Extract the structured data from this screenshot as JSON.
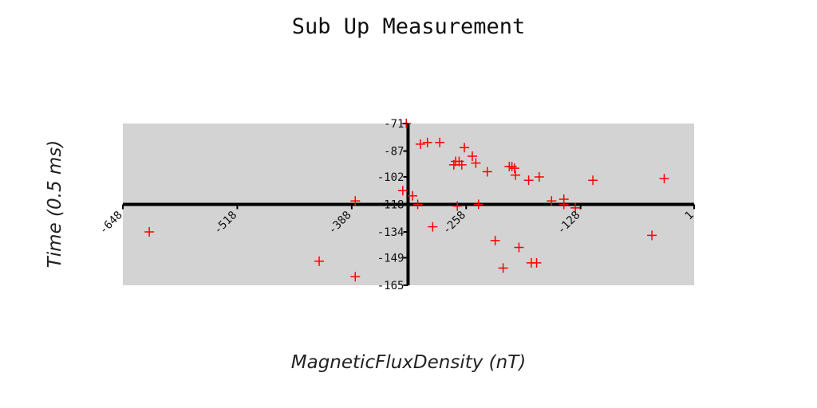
{
  "chart_data": {
    "type": "scatter",
    "title": "Sub Up Measurement",
    "xlabel": "MagneticFluxDensity (nT)",
    "ylabel": "Time (0.5 ms)",
    "xlim": [
      -648,
      1
    ],
    "ylim": [
      -165,
      -71
    ],
    "x_ticks": [
      -648,
      -518,
      -388,
      -258,
      -128,
      1
    ],
    "y_ticks": [
      -71,
      -87,
      -102,
      -118,
      -134,
      -149,
      -165
    ],
    "x_axis_at_y": -118,
    "y_axis_at_x": -324,
    "grid": false,
    "legend": "none",
    "colors": {
      "plot_background": "#d3d3d3",
      "marker": "#ff0000",
      "axis": "#000000"
    },
    "marker": "plus",
    "points": [
      [
        -618,
        -134
      ],
      [
        -425,
        -151
      ],
      [
        -384,
        -116
      ],
      [
        -384,
        -160
      ],
      [
        -330,
        -110
      ],
      [
        -326,
        -71
      ],
      [
        -319,
        -113
      ],
      [
        -313,
        -118
      ],
      [
        -310,
        -83
      ],
      [
        -302,
        -82
      ],
      [
        -296,
        -131
      ],
      [
        -288,
        -82
      ],
      [
        -272,
        -95
      ],
      [
        -270,
        -93
      ],
      [
        -268,
        -119
      ],
      [
        -266,
        -93
      ],
      [
        -263,
        -95
      ],
      [
        -260,
        -85
      ],
      [
        -251,
        -90
      ],
      [
        -247,
        -94
      ],
      [
        -244,
        -118
      ],
      [
        -234,
        -99
      ],
      [
        -225,
        -139
      ],
      [
        -216,
        -155
      ],
      [
        -209,
        -96
      ],
      [
        -206,
        -96
      ],
      [
        -203,
        -97
      ],
      [
        -202,
        -101
      ],
      [
        -198,
        -143
      ],
      [
        -187,
        -104
      ],
      [
        -184,
        -152
      ],
      [
        -178,
        -152
      ],
      [
        -175,
        -102
      ],
      [
        -161,
        -116
      ],
      [
        -147,
        -118
      ],
      [
        -147,
        -115
      ],
      [
        -134,
        -120
      ],
      [
        -114,
        -104
      ],
      [
        -47,
        -136
      ],
      [
        -33,
        -103
      ]
    ]
  }
}
